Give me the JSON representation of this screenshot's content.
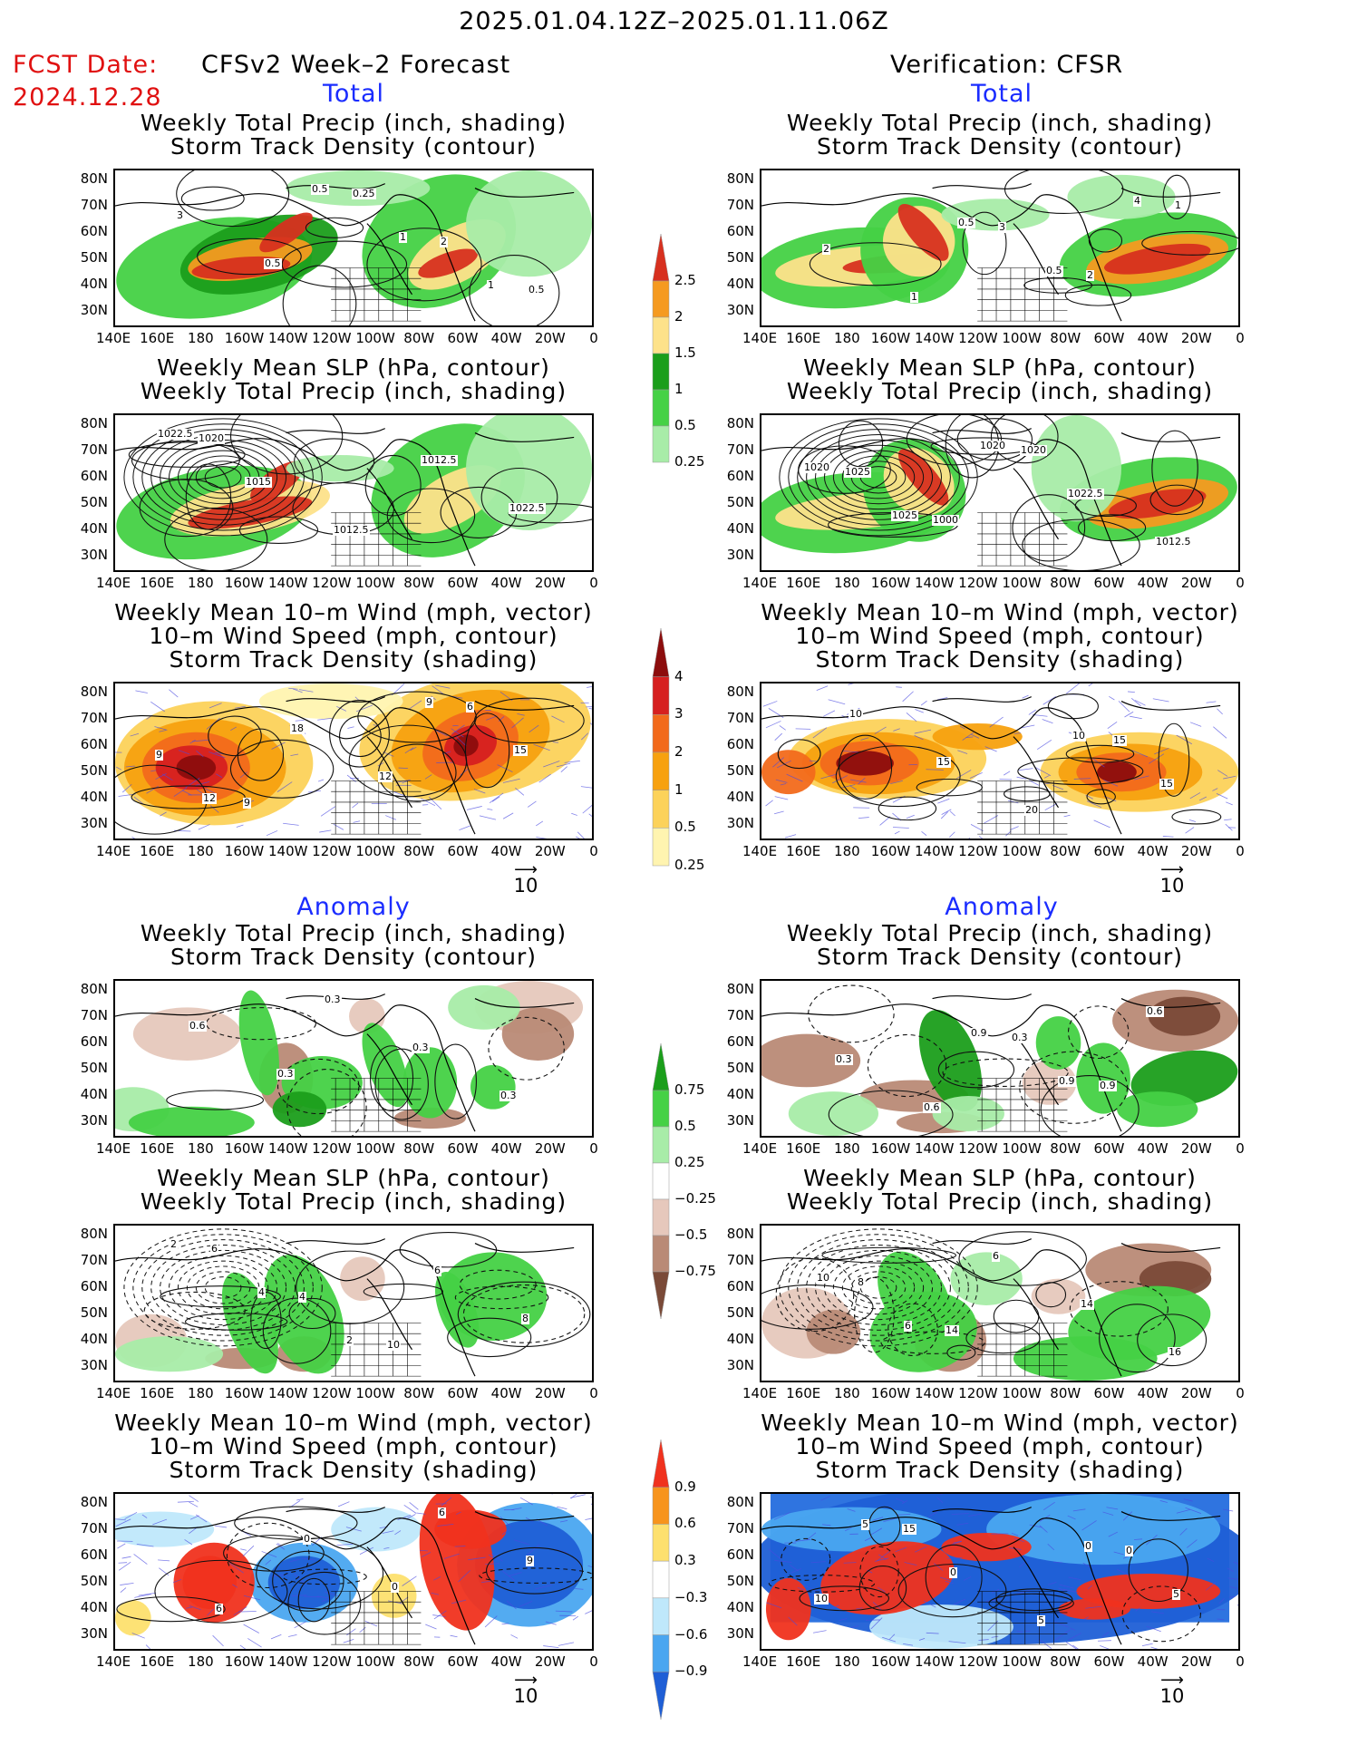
{
  "header": {
    "date_range": "2025.01.04.12Z–2025.01.11.06Z",
    "fcst_label": "FCST Date:",
    "fcst_date": "2024.12.28",
    "left_title": "CFSv2 Week–2 Forecast",
    "right_title": "Verification: CFSR"
  },
  "sections": {
    "total": "Total",
    "anomaly": "Anomaly"
  },
  "panel_titles": {
    "precip_1": "Weekly Total Precip (inch, shading)",
    "precip_2": "Storm Track Density (contour)",
    "slp_1": "Weekly Mean SLP (hPa, contour)",
    "slp_2": "Weekly Total Precip (inch, shading)",
    "wind_1": "Weekly Mean 10–m Wind (mph, vector)",
    "wind_2": "10–m Wind Speed (mph, contour)",
    "wind_3": "Storm Track Density (shading)"
  },
  "axes": {
    "lat": [
      "80N",
      "70N",
      "60N",
      "50N",
      "40N",
      "30N"
    ],
    "lon": [
      "140E",
      "160E",
      "180",
      "160W",
      "140W",
      "120W",
      "100W",
      "80W",
      "60W",
      "40W",
      "20W",
      "0"
    ]
  },
  "vector_ref": "10",
  "colorbars": {
    "precip_total": {
      "labels": [
        "2.5",
        "2",
        "1.5",
        "1",
        "0.5",
        "0.25"
      ],
      "colors": [
        "#d7301f",
        "#f59a20",
        "#fde28a",
        "#1b9e1b",
        "#45d145",
        "#a8eca8"
      ]
    },
    "track_total": {
      "labels": [
        "4",
        "3",
        "2",
        "1",
        "0.5",
        "0.25"
      ],
      "colors": [
        "#8c0d0d",
        "#d62020",
        "#f26a1b",
        "#f7a10f",
        "#fcd25a",
        "#fff4b0"
      ]
    },
    "precip_anom": {
      "labels": [
        "0.75",
        "0.5",
        "0.25",
        "−0.25",
        "−0.5",
        "−0.75"
      ],
      "colors": [
        "#1b9e1b",
        "#45d145",
        "#a8eca8",
        "#ffffff",
        "#e6c8bc",
        "#b98a76",
        "#7a4a38"
      ]
    },
    "track_anom": {
      "labels": [
        "0.9",
        "0.6",
        "0.3",
        "−0.3",
        "−0.6",
        "−0.9"
      ],
      "colors": [
        "#f0321e",
        "#f7941d",
        "#fde06e",
        "#ffffff",
        "#bfe8fb",
        "#4aa6f0",
        "#1f5fd6"
      ]
    }
  },
  "contour_labels": {
    "tp_f": [
      "0.5",
      "1",
      "1",
      "3",
      "0.5",
      "0.25",
      "2",
      "0.5"
    ],
    "tp_v": [
      "0.5",
      "0.5",
      "4",
      "2",
      "1",
      "3",
      "2",
      "1"
    ],
    "ts_f": [
      "1022.5",
      "1015",
      "1012.5",
      "1012.5",
      "1022.5",
      "1020"
    ],
    "ts_v": [
      "1020",
      "1025",
      "1020",
      "1022.5",
      "1012.5",
      "1025",
      "1000",
      "1020"
    ],
    "tw_f": [
      "9",
      "15",
      "12",
      "18",
      "12",
      "6",
      "9",
      "9"
    ],
    "tw_v": [
      "10",
      "15",
      "10",
      "15",
      "20",
      "15"
    ],
    "ap_f": [
      "0.3",
      "0.3",
      "0.3",
      "0.6",
      "0.3"
    ],
    "ap_v": [
      "0.9",
      "0.9",
      "0.6",
      "0.3",
      "0.6",
      "0.3",
      "0.9"
    ],
    "as_f": [
      "2",
      "4",
      "2",
      "6",
      "8",
      "6",
      "4",
      "10"
    ],
    "as_v": [
      "10",
      "6",
      "6",
      "14",
      "16",
      "8",
      "14"
    ],
    "aw_f": [
      "6",
      "9",
      "6",
      "0",
      "0"
    ],
    "aw_v": [
      "0",
      "5",
      "5",
      "0",
      "5",
      "0",
      "10",
      "15"
    ]
  }
}
